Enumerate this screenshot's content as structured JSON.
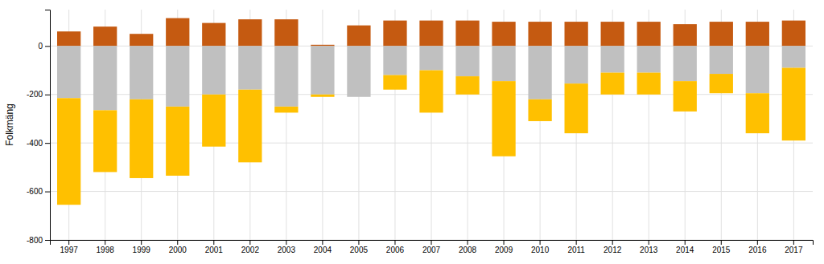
{
  "chart_data": {
    "type": "bar",
    "stacked": true,
    "grid": true,
    "ylabel": "Folkmäng",
    "categories": [
      "1997",
      "1998",
      "1999",
      "2000",
      "2001",
      "2002",
      "2003",
      "2004",
      "2005",
      "2006",
      "2007",
      "2008",
      "2009",
      "2010",
      "2011",
      "2012",
      "2013",
      "2014",
      "2015",
      "2016",
      "2017"
    ],
    "series": [
      {
        "color": "#C55A11",
        "values": [
          60,
          80,
          50,
          115,
          95,
          110,
          110,
          5,
          85,
          105,
          105,
          105,
          100,
          100,
          100,
          100,
          100,
          90,
          100,
          100,
          105
        ]
      },
      {
        "color": "#C0C0C0",
        "values": [
          -215,
          -265,
          -220,
          -250,
          -200,
          -180,
          -250,
          -200,
          -210,
          -120,
          -100,
          -125,
          -145,
          -220,
          -155,
          -110,
          -110,
          -145,
          -115,
          -195,
          -90
        ]
      },
      {
        "color": "#FFC000",
        "values": [
          -440,
          -255,
          -325,
          -285,
          -215,
          -300,
          -25,
          -10,
          0,
          -60,
          -175,
          -75,
          -310,
          -90,
          -205,
          -90,
          -90,
          -125,
          -80,
          -165,
          -300
        ]
      }
    ],
    "ylim": [
      -800,
      150
    ],
    "yticks": [
      0,
      -200,
      -400,
      -600,
      -800
    ]
  }
}
